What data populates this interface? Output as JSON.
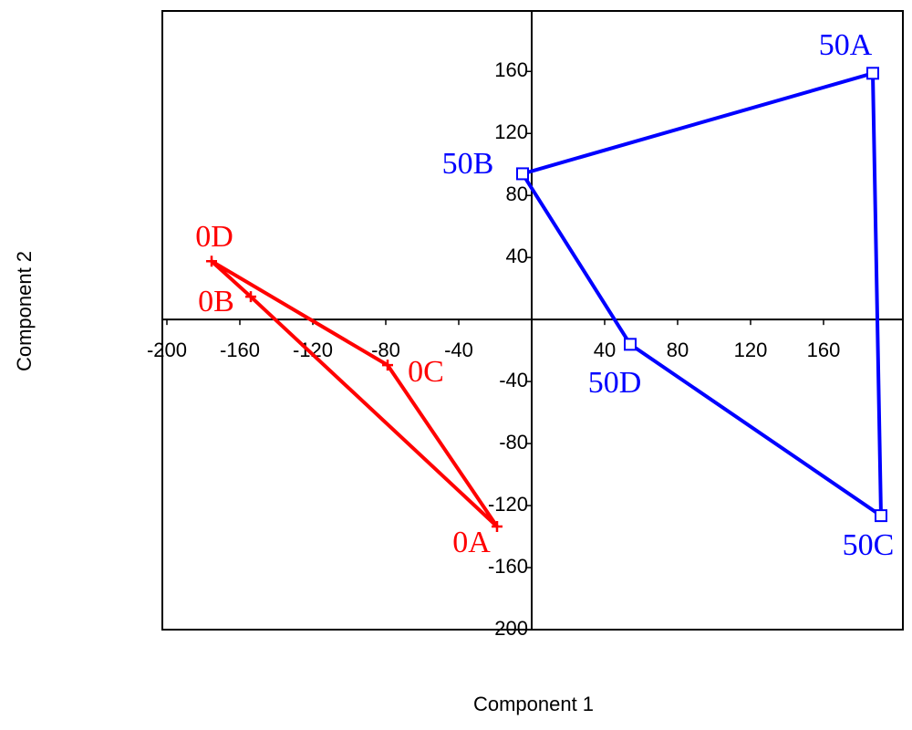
{
  "chart_data": {
    "type": "scatter",
    "x_label": "Component 1",
    "y_label": "Component 2",
    "xlim": [
      -202.5,
      203.5
    ],
    "ylim": [
      -200,
      199
    ],
    "xticks": [
      -200,
      -160,
      -120,
      -80,
      -40,
      40,
      80,
      120,
      160
    ],
    "yticks": [
      160,
      120,
      80,
      40,
      -40,
      -80,
      -120,
      -160,
      -200
    ],
    "closed": true,
    "series": [
      {
        "color": "#ff0000",
        "marker": "plus",
        "labels": [
          "0D",
          "0B",
          "0A",
          "0C"
        ],
        "x": [
          -175.5,
          -154,
          -19,
          -79
        ],
        "values": [
          37.6,
          14.7,
          -133.5,
          -29.4
        ]
      },
      {
        "color": "#0000ff",
        "marker": "square",
        "labels": [
          "50A",
          "50B",
          "50D",
          "50C"
        ],
        "x": [
          187,
          -5,
          54,
          191.5
        ],
        "values": [
          158.8,
          94,
          -16,
          -126.5
        ]
      }
    ]
  }
}
